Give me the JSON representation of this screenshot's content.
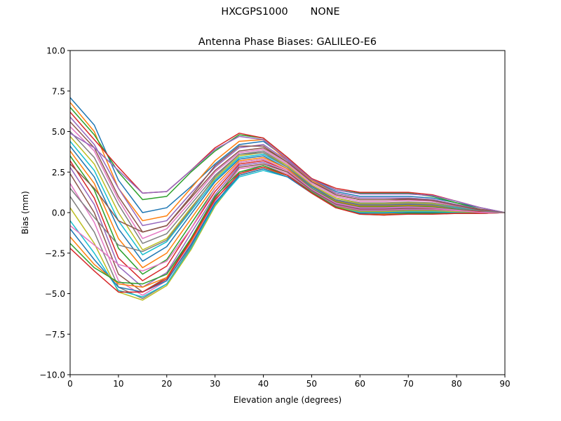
{
  "header": {
    "antenna": "HXCGPS1000",
    "radome": "NONE"
  },
  "chart_data": {
    "type": "line",
    "title": "Antenna Phase Biases: GALILEO-E6",
    "xlabel": "Elevation angle (degrees)",
    "ylabel": "Bias (mm)",
    "xlim": [
      0,
      90
    ],
    "ylim": [
      -10,
      10
    ],
    "xticks": [
      0,
      10,
      20,
      30,
      40,
      50,
      60,
      70,
      80,
      90
    ],
    "xtick_labels": [
      "0",
      "10",
      "20",
      "30",
      "40",
      "50",
      "60",
      "70",
      "80",
      "90"
    ],
    "yticks": [
      -10,
      -7.5,
      -5,
      -2.5,
      0,
      2.5,
      5,
      7.5,
      10
    ],
    "ytick_labels": [
      "−10.0",
      "−7.5",
      "−5.0",
      "−2.5",
      "0.0",
      "2.5",
      "5.0",
      "7.5",
      "10.0"
    ],
    "grid": false,
    "colors": [
      "#1f77b4",
      "#ff7f0e",
      "#2ca02c",
      "#d62728",
      "#9467bd",
      "#8c564b",
      "#e377c2",
      "#7f7f7f",
      "#bcbd22",
      "#17becf"
    ],
    "x": [
      0,
      5,
      10,
      15,
      20,
      25,
      30,
      35,
      40,
      45,
      50,
      55,
      60,
      65,
      70,
      75,
      80,
      85,
      90
    ],
    "series": [
      {
        "values": [
          7.1,
          5.4,
          2.0,
          0.0,
          0.3,
          1.6,
          3.0,
          4.2,
          4.4,
          3.3,
          2.0,
          1.3,
          1.0,
          1.0,
          1.0,
          0.9,
          0.6,
          0.3,
          0.0
        ]
      },
      {
        "values": [
          6.8,
          5.0,
          1.5,
          -0.5,
          -0.2,
          1.5,
          3.2,
          4.4,
          4.5,
          3.2,
          2.0,
          1.2,
          0.9,
          0.9,
          0.9,
          0.8,
          0.5,
          0.2,
          0.0
        ]
      },
      {
        "values": [
          6.5,
          4.8,
          2.5,
          0.8,
          1.0,
          2.5,
          3.8,
          4.8,
          4.6,
          3.4,
          2.1,
          1.4,
          1.2,
          1.2,
          1.2,
          1.0,
          0.6,
          0.2,
          0.0
        ]
      },
      {
        "values": [
          6.2,
          4.5,
          2.8,
          1.2,
          1.3,
          2.6,
          4.0,
          4.9,
          4.6,
          3.4,
          2.1,
          1.5,
          1.25,
          1.25,
          1.25,
          1.1,
          0.7,
          0.3,
          0.0
        ]
      },
      {
        "values": [
          5.9,
          4.2,
          1.5,
          -0.8,
          -0.5,
          1.2,
          2.8,
          4.0,
          4.2,
          3.2,
          1.9,
          1.2,
          0.9,
          0.9,
          0.9,
          0.8,
          0.5,
          0.2,
          0.0
        ]
      },
      {
        "values": [
          5.6,
          4.0,
          1.0,
          -1.2,
          -0.8,
          0.9,
          2.6,
          3.8,
          4.0,
          3.1,
          1.9,
          1.1,
          0.8,
          0.8,
          0.8,
          0.7,
          0.4,
          0.2,
          0.0
        ]
      },
      {
        "values": [
          5.3,
          3.8,
          0.8,
          -1.6,
          -1.0,
          0.7,
          2.5,
          3.7,
          3.9,
          3.0,
          1.8,
          1.0,
          0.7,
          0.7,
          0.75,
          0.7,
          0.4,
          0.15,
          0.0
        ]
      },
      {
        "values": [
          5.0,
          3.4,
          0.5,
          -1.9,
          -1.3,
          0.5,
          2.3,
          3.6,
          3.8,
          2.9,
          1.7,
          0.9,
          0.6,
          0.6,
          0.65,
          0.6,
          0.35,
          0.1,
          0.0
        ]
      },
      {
        "values": [
          4.7,
          3.0,
          0.0,
          -2.3,
          -1.6,
          0.3,
          2.1,
          3.5,
          3.7,
          2.9,
          1.7,
          0.9,
          0.55,
          0.55,
          0.6,
          0.55,
          0.3,
          0.1,
          0.0
        ]
      },
      {
        "values": [
          4.4,
          2.6,
          -0.5,
          -2.6,
          -1.8,
          0.1,
          2.0,
          3.4,
          3.6,
          2.8,
          1.6,
          0.8,
          0.5,
          0.5,
          0.55,
          0.5,
          0.3,
          0.1,
          0.0
        ]
      },
      {
        "values": [
          4.1,
          2.2,
          -1.0,
          -3.0,
          -2.1,
          -0.1,
          1.9,
          3.3,
          3.5,
          2.7,
          1.6,
          0.75,
          0.45,
          0.45,
          0.5,
          0.45,
          0.25,
          0.1,
          0.0
        ]
      },
      {
        "values": [
          3.8,
          1.8,
          -1.6,
          -3.4,
          -2.5,
          -0.4,
          1.7,
          3.2,
          3.4,
          2.7,
          1.5,
          0.7,
          0.4,
          0.4,
          0.45,
          0.4,
          0.2,
          0.05,
          0.0
        ]
      },
      {
        "values": [
          3.5,
          1.4,
          -2.2,
          -3.8,
          -2.9,
          -0.7,
          1.5,
          3.1,
          3.3,
          2.6,
          1.5,
          0.65,
          0.35,
          0.35,
          0.4,
          0.35,
          0.2,
          0.05,
          0.0
        ]
      },
      {
        "values": [
          3.2,
          0.9,
          -2.8,
          -4.2,
          -3.3,
          -1.0,
          1.3,
          3.0,
          3.2,
          2.6,
          1.4,
          0.6,
          0.3,
          0.3,
          0.35,
          0.3,
          0.15,
          0.05,
          0.0
        ]
      },
      {
        "values": [
          2.8,
          0.5,
          -3.3,
          -4.6,
          -3.7,
          -1.3,
          1.1,
          2.9,
          3.1,
          2.5,
          1.4,
          0.55,
          0.25,
          0.25,
          0.3,
          0.3,
          0.15,
          0.0,
          0.0
        ]
      },
      {
        "values": [
          2.4,
          0.0,
          -3.8,
          -4.9,
          -4.0,
          -1.6,
          0.9,
          2.8,
          3.0,
          2.5,
          1.35,
          0.5,
          0.2,
          0.2,
          0.25,
          0.25,
          0.1,
          0.0,
          0.0
        ]
      },
      {
        "values": [
          1.8,
          -0.6,
          -4.2,
          -5.1,
          -4.2,
          -1.9,
          0.7,
          2.7,
          2.9,
          2.4,
          1.3,
          0.45,
          0.15,
          0.15,
          0.2,
          0.2,
          0.1,
          0.0,
          0.0
        ]
      },
      {
        "values": [
          1.0,
          -1.2,
          -4.6,
          -5.3,
          -4.4,
          -2.1,
          0.5,
          2.5,
          2.8,
          2.3,
          1.3,
          0.4,
          0.1,
          0.1,
          0.15,
          0.15,
          0.05,
          0.0,
          0.0
        ]
      },
      {
        "values": [
          0.3,
          -1.9,
          -4.9,
          -5.4,
          -4.5,
          -2.3,
          0.4,
          2.3,
          2.7,
          2.3,
          1.25,
          0.35,
          0.05,
          0.05,
          0.1,
          0.1,
          0.05,
          -0.05,
          0.0
        ]
      },
      {
        "values": [
          -0.5,
          -2.5,
          -4.8,
          -5.2,
          -4.4,
          -2.2,
          0.5,
          2.2,
          2.6,
          2.2,
          1.2,
          0.3,
          0.0,
          0.0,
          0.05,
          0.05,
          0.0,
          -0.05,
          0.0
        ]
      },
      {
        "values": [
          -1.0,
          -2.9,
          -4.6,
          -4.9,
          -4.2,
          -2.0,
          0.6,
          2.3,
          2.7,
          2.2,
          1.2,
          0.3,
          -0.05,
          -0.05,
          0.0,
          0.0,
          -0.05,
          -0.05,
          0.0
        ]
      },
      {
        "values": [
          -1.5,
          -3.2,
          -4.4,
          -4.6,
          -4.0,
          -1.8,
          0.8,
          2.4,
          2.8,
          2.3,
          1.2,
          0.3,
          -0.1,
          -0.1,
          -0.05,
          -0.05,
          -0.05,
          -0.05,
          0.0
        ]
      },
      {
        "values": [
          -1.9,
          -3.4,
          -4.3,
          -4.4,
          -3.8,
          -1.6,
          1.0,
          2.5,
          2.9,
          2.3,
          1.25,
          0.35,
          -0.1,
          -0.15,
          -0.05,
          -0.05,
          -0.05,
          -0.05,
          0.0
        ]
      },
      {
        "values": [
          -2.2,
          -3.6,
          -4.9,
          -4.9,
          -4.1,
          -1.7,
          0.8,
          2.4,
          2.8,
          2.3,
          1.2,
          0.3,
          -0.1,
          -0.15,
          -0.1,
          -0.1,
          -0.05,
          -0.05,
          0.0
        ]
      },
      {
        "values": [
          4.9,
          4.0,
          2.6,
          1.2,
          1.3,
          2.6,
          3.9,
          4.7,
          4.5,
          3.3,
          2.05,
          1.4,
          1.15,
          1.15,
          1.15,
          1.05,
          0.7,
          0.3,
          0.0
        ]
      },
      {
        "values": [
          3.0,
          1.5,
          -0.5,
          -1.2,
          -0.8,
          1.0,
          2.9,
          4.1,
          4.1,
          3.1,
          1.9,
          1.1,
          0.8,
          0.8,
          0.85,
          0.75,
          0.45,
          0.15,
          0.0
        ]
      },
      {
        "values": [
          -0.8,
          -2.0,
          -3.2,
          -3.6,
          -3.0,
          -1.0,
          1.5,
          3.1,
          3.3,
          2.6,
          1.45,
          0.6,
          0.3,
          0.3,
          0.35,
          0.3,
          0.15,
          0.0,
          0.0
        ]
      },
      {
        "values": [
          1.5,
          -0.3,
          -2.0,
          -2.4,
          -1.7,
          0.2,
          2.2,
          3.6,
          3.7,
          2.8,
          1.65,
          0.8,
          0.5,
          0.5,
          0.55,
          0.5,
          0.25,
          0.1,
          0.0
        ]
      }
    ]
  }
}
